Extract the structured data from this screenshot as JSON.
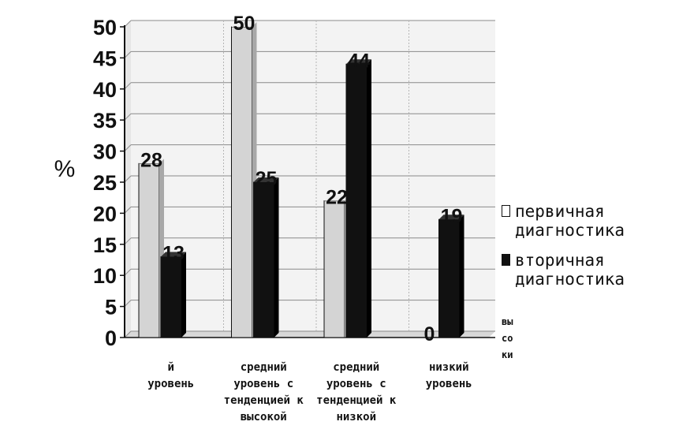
{
  "chart_data": {
    "type": "bar",
    "ylabel": "%",
    "ylim": [
      0,
      50
    ],
    "yticks": [
      "0",
      "5",
      "10",
      "15",
      "20",
      "25",
      "30",
      "35",
      "40",
      "45",
      "50"
    ],
    "categories": [
      [
        "й",
        "уровень"
      ],
      [
        "средний",
        "уровень с",
        "тенденцией к",
        "высокой"
      ],
      [
        "средний",
        "уровень с",
        "тенденцией к",
        "низкой"
      ],
      [
        "низкий",
        "уровень"
      ]
    ],
    "series": [
      {
        "name": "первичная диагностика",
        "values": [
          28,
          50,
          22,
          0
        ],
        "labels": [
          "28",
          "50",
          "22",
          "0"
        ],
        "color": "#d4d4d4"
      },
      {
        "name": "вторичная диагностика",
        "values": [
          13,
          25,
          44,
          19
        ],
        "labels": [
          "13",
          "25",
          "44",
          "19"
        ],
        "color": "#111111"
      }
    ],
    "grid": true,
    "legend_position": "right",
    "legend_overflow_text": [
      "вы",
      "со",
      "ки"
    ],
    "colors": {
      "grid": "#8a8a8a",
      "axis": "#111111",
      "floor": "#d8d8d8"
    }
  },
  "legend": {
    "items": [
      {
        "label_lines": [
          "первичная",
          "диагностика"
        ],
        "swatch": "light"
      },
      {
        "label_lines": [
          "вторичная",
          "диагностика"
        ],
        "swatch": "dark"
      }
    ]
  }
}
